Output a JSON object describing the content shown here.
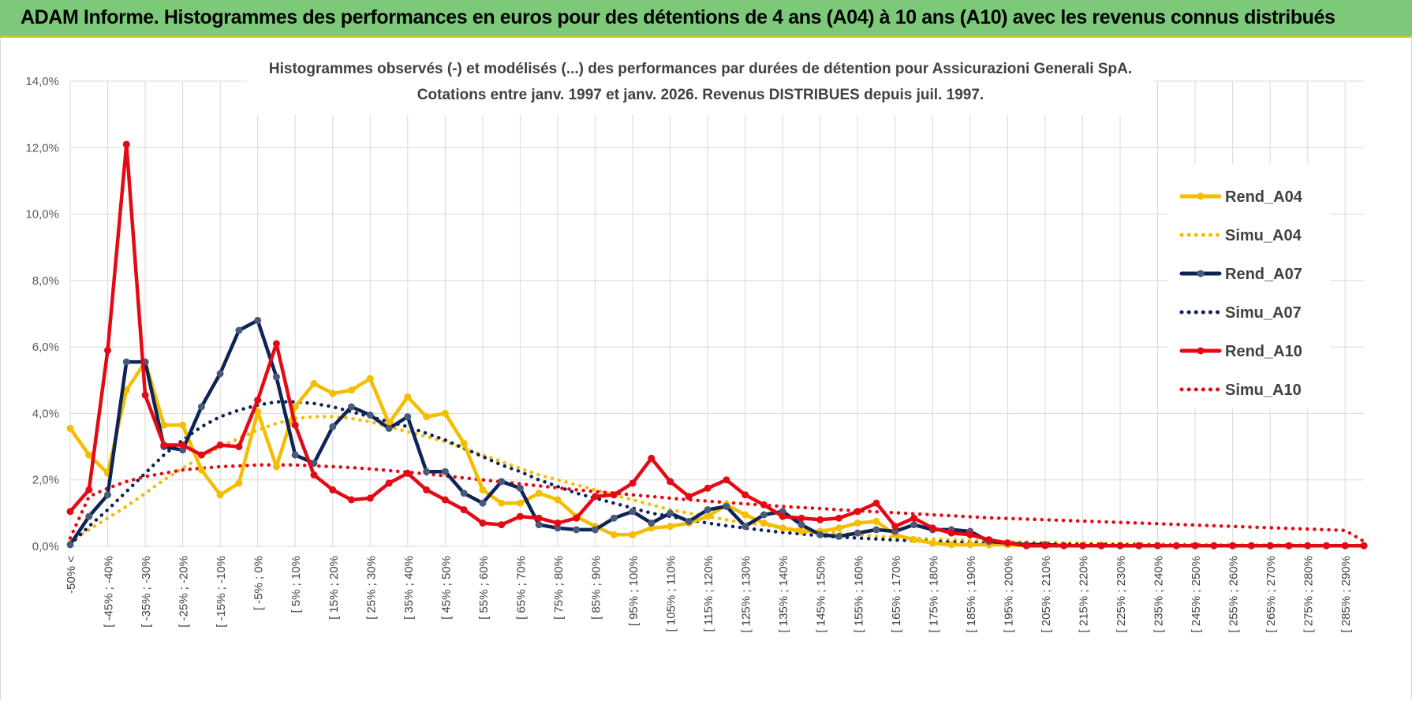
{
  "header": {
    "title": "ADAM Informe. Histogrammes des performances en euros pour des détentions de 4 ans (A04) à 10 ans (A10) avec les revenus connus distribués"
  },
  "colors": {
    "header_bg": "#7dc97a",
    "accent": "#e8c52a",
    "A04": "#f5bd00",
    "A07": "#0f2456",
    "A10": "#e50914",
    "grid": "#d9d9d9"
  },
  "chart_data": {
    "type": "line",
    "title": "Histogrammes observés (-) et modélisés (...) des performances par durées de détention pour Assicurazioni Generali SpA.",
    "subtitle": "Cotations entre janv. 1997 et janv. 2026. Revenus DISTRIBUES depuis juil. 1997.",
    "xlabel": "",
    "ylabel": "",
    "ylim": [
      0,
      14
    ],
    "yticks": [
      "0,0%",
      "2,0%",
      "4,0%",
      "6,0%",
      "8,0%",
      "10,0%",
      "12,0%",
      "14,0%"
    ],
    "xticks": [
      "-50% <",
      "[ -45% ; -40%",
      "[ -35% ; -30%",
      "[ -25% ; -20%",
      "[ -15% ; -10%",
      "[ -5% ; 0%",
      "[ 5% ; 10%",
      "[ 15% ; 20%",
      "[ 25% ; 30%",
      "[ 35% ; 40%",
      "[ 45% ; 50%",
      "[ 55% ; 60%",
      "[ 65% ; 70%",
      "[ 75% ; 80%",
      "[ 85% ; 90%",
      "[ 95% ; 100%",
      "[ 105% ; 110%",
      "[ 115% ; 120%",
      "[ 125% ; 130%",
      "[ 135% ; 140%",
      "[ 145% ; 150%",
      "[ 155% ; 160%",
      "[ 165% ; 170%",
      "[ 175% ; 180%",
      "[ 185% ; 190%",
      "[ 195% ; 200%",
      "[ 205% ; 210%",
      "[ 215% ; 220%",
      "[ 225% ; 230%",
      "[ 235% ; 240%",
      "[ 245% ; 250%",
      "[ 255% ; 260%",
      "[ 265% ; 270%",
      "[ 275% ; 280%",
      "[ 285% ; 290%"
    ],
    "legend_position": "right",
    "series": [
      {
        "name": "Rend_A04",
        "style": "solid",
        "color": "#f5bd00",
        "values": [
          3.55,
          2.75,
          2.2,
          4.7,
          5.55,
          3.65,
          3.65,
          2.3,
          1.55,
          1.9,
          4.05,
          2.4,
          4.2,
          4.9,
          4.6,
          4.7,
          5.05,
          3.7,
          4.5,
          3.9,
          4.0,
          3.1,
          1.7,
          1.3,
          1.3,
          1.6,
          1.4,
          0.9,
          0.6,
          0.35,
          0.35,
          0.55,
          0.6,
          0.7,
          0.9,
          1.25,
          0.95,
          0.7,
          0.55,
          0.45,
          0.45,
          0.55,
          0.7,
          0.75,
          0.35,
          0.2,
          0.1,
          0.05,
          0.05,
          0.05,
          0.05,
          0.02,
          0.02,
          0.02,
          0.02,
          0.02,
          0.02,
          0.02,
          0.02,
          0.02,
          0.02,
          0.02,
          0.02,
          0.02,
          0.02,
          0.02,
          0.02,
          0.02,
          0.02,
          0.02
        ]
      },
      {
        "name": "Simu_A04",
        "style": "dotted",
        "color": "#f5bd00",
        "values": [
          0.15,
          0.5,
          0.85,
          1.2,
          1.6,
          2.0,
          2.35,
          2.7,
          3.0,
          3.25,
          3.5,
          3.7,
          3.85,
          3.9,
          3.9,
          3.85,
          3.75,
          3.6,
          3.45,
          3.3,
          3.15,
          2.95,
          2.75,
          2.55,
          2.35,
          2.15,
          2.0,
          1.85,
          1.7,
          1.55,
          1.4,
          1.25,
          1.1,
          1.0,
          0.9,
          0.8,
          0.7,
          0.65,
          0.55,
          0.5,
          0.45,
          0.4,
          0.35,
          0.3,
          0.27,
          0.25,
          0.22,
          0.2,
          0.18,
          0.16,
          0.14,
          0.13,
          0.12,
          0.11,
          0.1,
          0.09,
          0.08,
          0.08,
          0.07,
          0.06,
          0.06,
          0.05,
          0.05,
          0.04,
          0.04,
          0.04,
          0.03,
          0.03,
          0.03,
          0.03
        ]
      },
      {
        "name": "Rend_A07",
        "style": "solid",
        "color": "#0f2456",
        "values": [
          0.05,
          0.9,
          1.55,
          5.55,
          5.55,
          3.0,
          2.9,
          4.2,
          5.2,
          6.5,
          6.8,
          5.1,
          2.75,
          2.5,
          3.6,
          4.2,
          3.95,
          3.55,
          3.9,
          2.25,
          2.25,
          1.6,
          1.3,
          1.95,
          1.75,
          0.65,
          0.55,
          0.5,
          0.5,
          0.85,
          1.05,
          0.7,
          1.0,
          0.75,
          1.1,
          1.2,
          0.6,
          0.95,
          1.05,
          0.65,
          0.35,
          0.3,
          0.4,
          0.5,
          0.45,
          0.65,
          0.5,
          0.5,
          0.45,
          0.15,
          0.1,
          0.05,
          0.05,
          0.02,
          0.02,
          0.02,
          0.02,
          0.02,
          0.02,
          0.02,
          0.02,
          0.02,
          0.02,
          0.02,
          0.02,
          0.02,
          0.02,
          0.02,
          0.02,
          0.02
        ]
      },
      {
        "name": "Simu_A07",
        "style": "dotted",
        "color": "#0f2456",
        "values": [
          0.05,
          0.6,
          1.1,
          1.65,
          2.2,
          2.75,
          3.2,
          3.6,
          3.9,
          4.1,
          4.25,
          4.35,
          4.35,
          4.3,
          4.2,
          4.05,
          3.9,
          3.75,
          3.6,
          3.4,
          3.2,
          2.95,
          2.7,
          2.45,
          2.25,
          2.0,
          1.8,
          1.6,
          1.45,
          1.3,
          1.15,
          1.0,
          0.9,
          0.8,
          0.7,
          0.62,
          0.55,
          0.48,
          0.42,
          0.37,
          0.32,
          0.28,
          0.25,
          0.22,
          0.19,
          0.17,
          0.15,
          0.13,
          0.11,
          0.1,
          0.09,
          0.08,
          0.07,
          0.06,
          0.05,
          0.05,
          0.04,
          0.04,
          0.03,
          0.03,
          0.03,
          0.02,
          0.02,
          0.02,
          0.02,
          0.02,
          0.02,
          0.02,
          0.02,
          0.02
        ]
      },
      {
        "name": "Rend_A10",
        "style": "solid",
        "color": "#e50914",
        "values": [
          1.05,
          1.7,
          5.9,
          12.1,
          4.55,
          3.05,
          3.05,
          2.75,
          3.05,
          3.0,
          4.4,
          6.1,
          3.65,
          2.15,
          1.7,
          1.4,
          1.45,
          1.9,
          2.2,
          1.7,
          1.4,
          1.1,
          0.7,
          0.65,
          0.9,
          0.85,
          0.7,
          0.85,
          1.5,
          1.55,
          1.9,
          2.65,
          1.95,
          1.5,
          1.75,
          2.0,
          1.55,
          1.25,
          0.9,
          0.85,
          0.8,
          0.85,
          1.05,
          1.3,
          0.6,
          0.85,
          0.55,
          0.4,
          0.35,
          0.2,
          0.1,
          0.02,
          0.02,
          0.02,
          0.02,
          0.02,
          0.02,
          0.02,
          0.02,
          0.02,
          0.02,
          0.02,
          0.02,
          0.02,
          0.02,
          0.02,
          0.02,
          0.02,
          0.02,
          0.02
        ]
      },
      {
        "name": "Simu_A10",
        "style": "dotted",
        "color": "#e50914",
        "values": [
          0.25,
          1.5,
          1.75,
          1.95,
          2.1,
          2.2,
          2.3,
          2.35,
          2.4,
          2.42,
          2.45,
          2.45,
          2.45,
          2.42,
          2.4,
          2.37,
          2.33,
          2.28,
          2.23,
          2.18,
          2.12,
          2.06,
          2.0,
          1.94,
          1.88,
          1.82,
          1.76,
          1.7,
          1.65,
          1.6,
          1.55,
          1.5,
          1.45,
          1.4,
          1.36,
          1.32,
          1.28,
          1.24,
          1.2,
          1.17,
          1.14,
          1.1,
          1.07,
          1.04,
          1.01,
          0.98,
          0.95,
          0.92,
          0.89,
          0.86,
          0.84,
          0.82,
          0.8,
          0.78,
          0.76,
          0.74,
          0.72,
          0.7,
          0.68,
          0.66,
          0.64,
          0.62,
          0.6,
          0.58,
          0.56,
          0.54,
          0.52,
          0.5,
          0.48,
          0.15
        ]
      }
    ]
  }
}
